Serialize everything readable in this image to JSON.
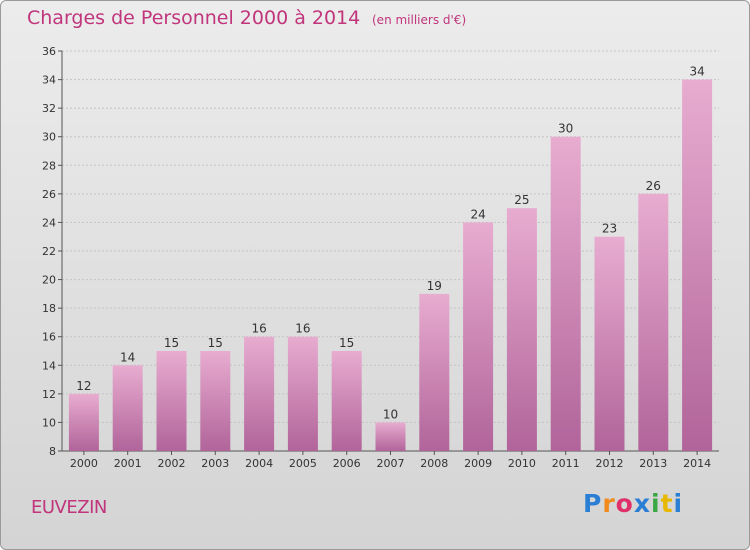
{
  "header": {
    "title": "Charges de Personnel 2000 à 2014",
    "subtitle": "(en milliers d'€)"
  },
  "footer": {
    "city": "EUVEZIN",
    "logo_text": "Proxiti"
  },
  "colors": {
    "title": "#c0357c",
    "bar_top": "#e8acd0",
    "bar_bottom": "#b1649a",
    "logo": [
      "#2a7fd4",
      "#f08a1c",
      "#e0306a",
      "#2a7fd4",
      "#3aa844",
      "#e8b800",
      "#2a7fd4"
    ]
  },
  "chart_data": {
    "type": "bar",
    "title": "Charges de Personnel 2000 à 2014",
    "subtitle": "(en milliers d'€)",
    "categories": [
      "2000",
      "2001",
      "2002",
      "2003",
      "2004",
      "2005",
      "2006",
      "2007",
      "2008",
      "2009",
      "2010",
      "2011",
      "2012",
      "2013",
      "2014"
    ],
    "values": [
      12,
      14,
      15,
      15,
      16,
      16,
      15,
      10,
      19,
      24,
      25,
      30,
      23,
      26,
      34
    ],
    "ylim": [
      8,
      36
    ],
    "yticks": [
      8,
      10,
      12,
      14,
      16,
      18,
      20,
      22,
      24,
      26,
      28,
      30,
      32,
      34,
      36
    ],
    "grid": true,
    "legend": "none"
  }
}
